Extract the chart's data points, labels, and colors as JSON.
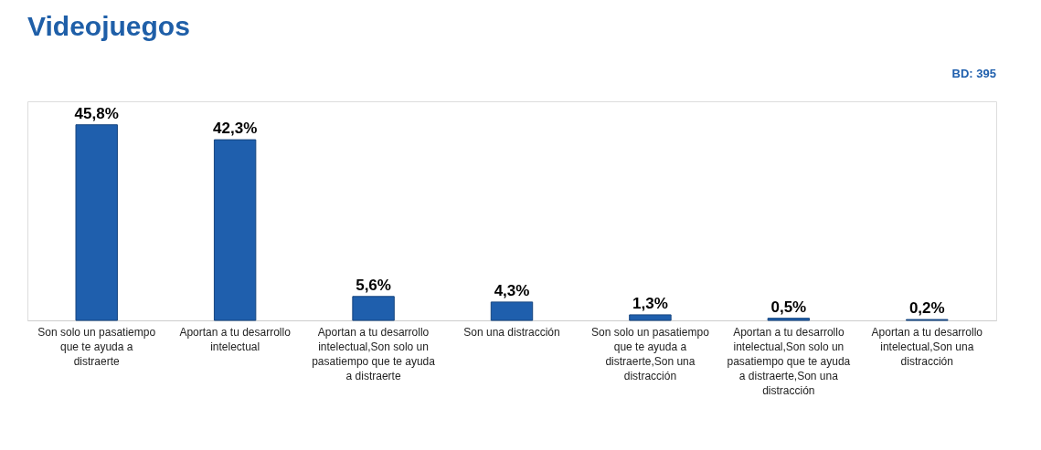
{
  "chart_data": {
    "type": "bar",
    "title": "Videojuegos",
    "categories": [
      "Son solo un pasatiempo que te ayuda a distraerte",
      "Aportan a tu desarrollo intelectual",
      "Aportan a tu desarrollo intelectual,Son solo un pasatiempo que te ayuda a distraerte",
      "Son una distracción",
      "Son solo un pasatiempo que te ayuda a distraerte,Son una distracción",
      "Aportan a tu desarrollo intelectual,Son solo un pasatiempo que te ayuda a distraerte,Son una distracción",
      "Aportan a tu desarrollo intelectual,Son una distracción"
    ],
    "values": [
      45.8,
      42.3,
      5.6,
      4.3,
      1.3,
      0.5,
      0.2
    ],
    "value_labels": [
      "45,8%",
      "42,3%",
      "5,6%",
      "4,3%",
      "1,3%",
      "0,5%",
      "0,2%"
    ],
    "color": "#1f5fad",
    "annotations": [
      "BD: 395"
    ]
  }
}
